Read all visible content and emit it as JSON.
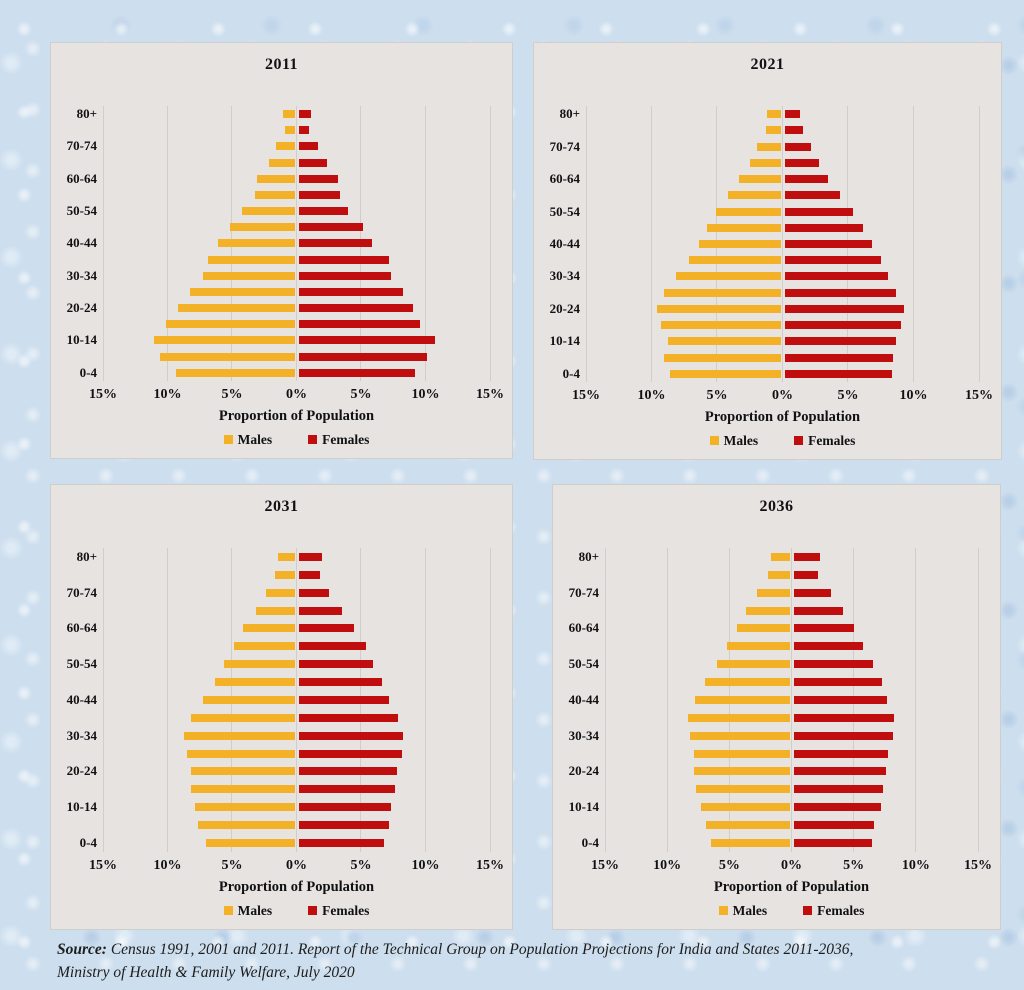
{
  "page": {
    "background_color": "#cddeee",
    "panel_color": "#e6e3e0",
    "gridline_color": "#d1cec9"
  },
  "colors": {
    "males": "#F2B127",
    "females": "#C00D0D"
  },
  "source_note": {
    "prefix": "Source:",
    "line1_rest": " Census 1991, 2001 and 2011. Report of the Technical Group on Population Projections for India and States 2011-2036,",
    "line2": "Ministry of Health & Family Welfare, July 2020"
  },
  "chart_data": [
    {
      "type": "bar",
      "subtype": "population-pyramid",
      "title": "2011",
      "xlabel": "Proportion of Population",
      "x_ticks": [
        "15%",
        "10%",
        "5%",
        "0%",
        "5%",
        "10%",
        "15%"
      ],
      "xlim": [
        -15,
        15
      ],
      "grid": true,
      "legend_position": "bottom",
      "age_groups": [
        "0-4",
        "5-9",
        "10-14",
        "15-19",
        "20-24",
        "25-29",
        "30-34",
        "35-39",
        "40-44",
        "45-49",
        "50-54",
        "55-59",
        "60-64",
        "65-69",
        "70-74",
        "75-79",
        "80+"
      ],
      "labeled_age_groups": [
        "0-4",
        "10-14",
        "20-24",
        "30-34",
        "40-44",
        "50-54",
        "60-64",
        "70-74",
        "80+"
      ],
      "series": [
        {
          "name": "Males",
          "color": "#F2B127",
          "values": [
            9.2,
            10.4,
            10.9,
            10.0,
            9.0,
            8.1,
            7.1,
            6.7,
            5.9,
            5.0,
            4.1,
            3.1,
            2.9,
            2.0,
            1.4,
            0.7,
            0.9
          ]
        },
        {
          "name": "Females",
          "color": "#C00D0D",
          "values": [
            9.0,
            10.0,
            10.6,
            9.4,
            8.9,
            8.1,
            7.2,
            7.0,
            5.7,
            5.0,
            3.8,
            3.2,
            3.1,
            2.2,
            1.5,
            0.8,
            1.0
          ]
        }
      ]
    },
    {
      "type": "bar",
      "subtype": "population-pyramid",
      "title": "2021",
      "xlabel": "Proportion of Population",
      "x_ticks": [
        "15%",
        "10%",
        "5%",
        "0%",
        "5%",
        "10%",
        "15%"
      ],
      "xlim": [
        -15,
        15
      ],
      "grid": true,
      "legend_position": "bottom",
      "age_groups": [
        "0-4",
        "5-9",
        "10-14",
        "15-19",
        "20-24",
        "25-29",
        "30-34",
        "35-39",
        "40-44",
        "45-49",
        "50-54",
        "55-59",
        "60-64",
        "65-69",
        "70-74",
        "75-79",
        "80+"
      ],
      "labeled_age_groups": [
        "0-4",
        "10-14",
        "20-24",
        "30-34",
        "40-44",
        "50-54",
        "60-64",
        "70-74",
        "80+"
      ],
      "series": [
        {
          "name": "Males",
          "color": "#F2B127",
          "values": [
            8.4,
            8.9,
            8.6,
            9.1,
            9.4,
            8.9,
            8.0,
            7.0,
            6.2,
            5.6,
            4.9,
            4.0,
            3.2,
            2.3,
            1.8,
            1.1,
            1.0
          ]
        },
        {
          "name": "Females",
          "color": "#C00D0D",
          "values": [
            8.2,
            8.3,
            8.5,
            8.9,
            9.1,
            8.5,
            7.9,
            7.4,
            6.7,
            6.0,
            5.2,
            4.2,
            3.3,
            2.6,
            2.0,
            1.4,
            1.2
          ]
        }
      ]
    },
    {
      "type": "bar",
      "subtype": "population-pyramid",
      "title": "2031",
      "xlabel": "Proportion of Population",
      "x_ticks": [
        "15%",
        "10%",
        "5%",
        "0%",
        "5%",
        "10%",
        "15%"
      ],
      "xlim": [
        -15,
        15
      ],
      "grid": true,
      "legend_position": "bottom",
      "age_groups": [
        "0-4",
        "5-9",
        "10-14",
        "15-19",
        "20-24",
        "25-29",
        "30-34",
        "35-39",
        "40-44",
        "45-49",
        "50-54",
        "55-59",
        "60-64",
        "65-69",
        "70-74",
        "75-79",
        "80+"
      ],
      "labeled_age_groups": [
        "0-4",
        "10-14",
        "20-24",
        "30-34",
        "40-44",
        "50-54",
        "60-64",
        "70-74",
        "80+"
      ],
      "series": [
        {
          "name": "Males",
          "color": "#F2B127",
          "values": [
            6.9,
            7.5,
            7.7,
            8.0,
            8.0,
            8.3,
            8.6,
            8.0,
            7.1,
            6.2,
            5.5,
            4.7,
            4.0,
            3.0,
            2.2,
            1.5,
            1.3
          ]
        },
        {
          "name": "Females",
          "color": "#C00D0D",
          "values": [
            6.6,
            7.0,
            7.2,
            7.5,
            7.6,
            8.0,
            8.1,
            7.7,
            7.0,
            6.5,
            5.8,
            5.2,
            4.3,
            3.4,
            2.4,
            1.7,
            1.8
          ]
        }
      ]
    },
    {
      "type": "bar",
      "subtype": "population-pyramid",
      "title": "2036",
      "xlabel": "Proportion of Population",
      "x_ticks": [
        "15%",
        "10%",
        "5%",
        "0%",
        "5%",
        "10%",
        "15%"
      ],
      "xlim": [
        -15,
        15
      ],
      "grid": true,
      "legend_position": "bottom",
      "age_groups": [
        "0-4",
        "5-9",
        "10-14",
        "15-19",
        "20-24",
        "25-29",
        "30-34",
        "35-39",
        "40-44",
        "45-49",
        "50-54",
        "55-59",
        "60-64",
        "65-69",
        "70-74",
        "75-79",
        "80+"
      ],
      "labeled_age_groups": [
        "0-4",
        "10-14",
        "20-24",
        "30-34",
        "40-44",
        "50-54",
        "60-64",
        "70-74",
        "80+"
      ],
      "series": [
        {
          "name": "Males",
          "color": "#F2B127",
          "values": [
            6.3,
            6.7,
            7.1,
            7.5,
            7.7,
            7.7,
            8.0,
            8.2,
            7.6,
            6.8,
            5.8,
            5.0,
            4.2,
            3.5,
            2.6,
            1.7,
            1.5
          ]
        },
        {
          "name": "Females",
          "color": "#C00D0D",
          "values": [
            6.3,
            6.5,
            7.0,
            7.2,
            7.4,
            7.6,
            8.0,
            8.1,
            7.5,
            7.1,
            6.4,
            5.6,
            4.9,
            4.0,
            3.0,
            2.0,
            2.1
          ]
        }
      ]
    }
  ]
}
